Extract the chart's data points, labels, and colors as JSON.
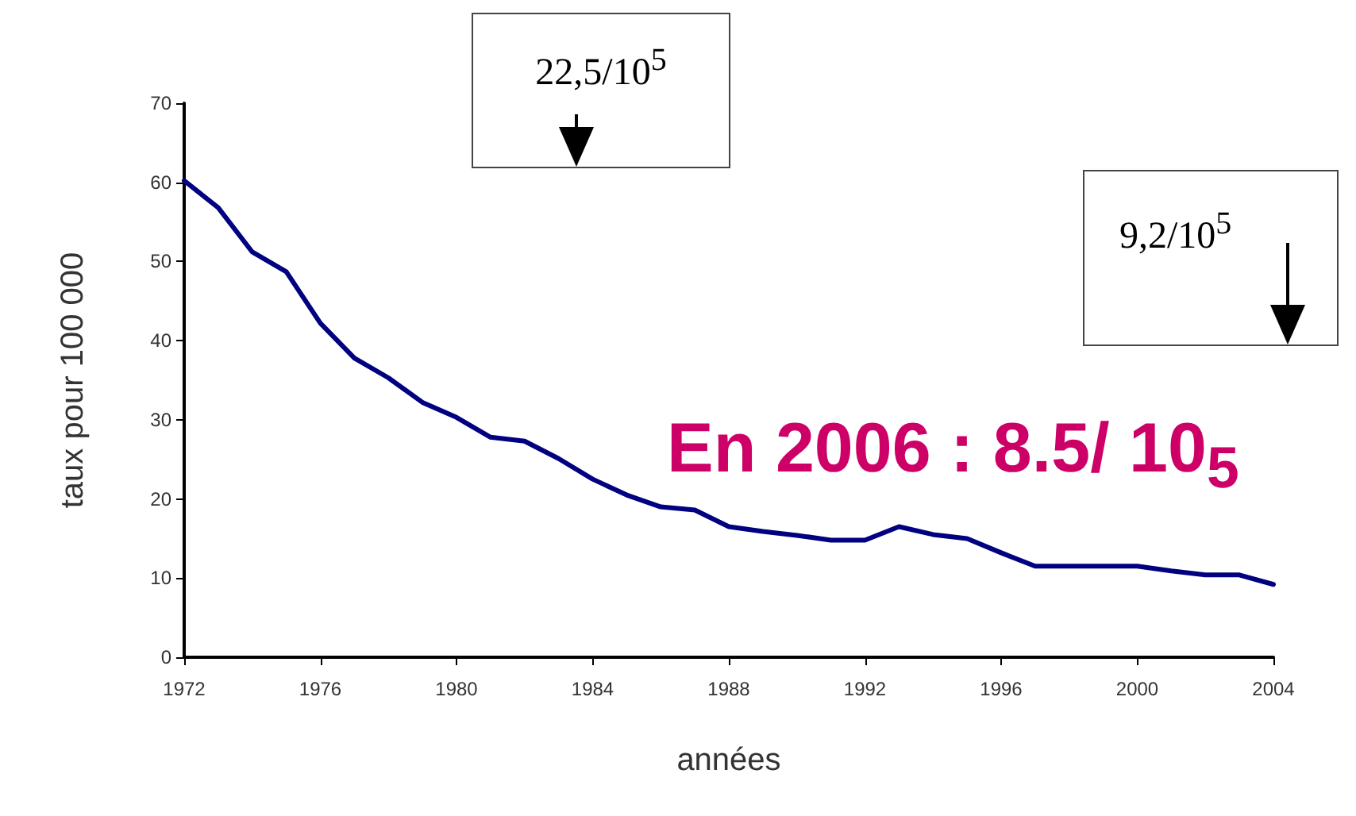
{
  "chart_data": {
    "type": "line",
    "xlabel": "années",
    "ylabel": "taux pour 100 000",
    "x": [
      1972,
      1973,
      1974,
      1975,
      1976,
      1977,
      1978,
      1979,
      1980,
      1981,
      1982,
      1983,
      1984,
      1985,
      1986,
      1987,
      1988,
      1989,
      1990,
      1991,
      1992,
      1993,
      1994,
      1995,
      1996,
      1997,
      1998,
      1999,
      2000,
      2001,
      2002,
      2003,
      2004
    ],
    "series": [
      {
        "color": "#000080",
        "values": [
          60.2,
          56.8,
          51.2,
          48.7,
          42.2,
          37.8,
          35.3,
          32.2,
          30.3,
          27.8,
          27.3,
          25.1,
          22.5,
          20.5,
          19,
          18.6,
          16.5,
          15.9,
          15.4,
          14.8,
          14.8,
          16.5,
          15.5,
          15,
          13.2,
          11.5,
          11.5,
          11.5,
          11.5,
          10.9,
          10.4,
          10.4,
          9.2
        ]
      }
    ],
    "xlim": [
      1972,
      2004
    ],
    "xticks": [
      1972,
      1976,
      1980,
      1984,
      1988,
      1992,
      1996,
      2000,
      2004
    ],
    "ylim": [
      0,
      70
    ],
    "yticks": [
      0,
      10,
      20,
      30,
      40,
      50,
      60,
      70
    ],
    "grid": false,
    "marker": "none",
    "line_style": "solid",
    "annotations": [
      "22,5/10$^{5}$",
      "9,2/10$^{5}$",
      "En 2006 : 8.5/ 10$_{5}$"
    ]
  }
}
